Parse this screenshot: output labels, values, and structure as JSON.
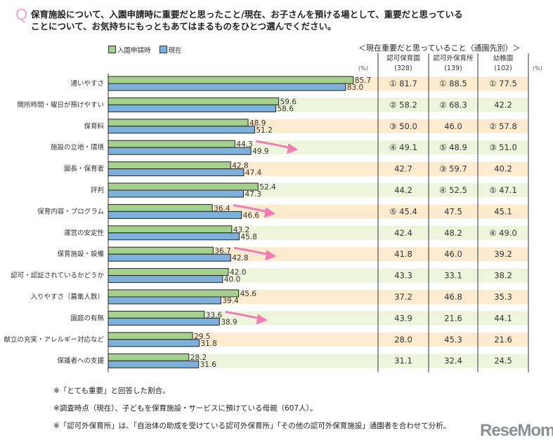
{
  "question_mark": "Q",
  "title_lines": [
    "保育施設について、入園申請時に重要だと思ったこと/現在、お子さんを預ける場として、重要だと思っている",
    "ことについて、お気持ちにもっともあてはまるものをひとつ選んでください。"
  ],
  "chart_data": {
    "type": "bar",
    "orientation": "horizontal",
    "unit": "(%)",
    "xlim": [
      0,
      100
    ],
    "categories": [
      "通いやすさ",
      "開所時間・曜日が預けやすい",
      "保育料",
      "施設の立地・環境",
      "園長・保育者",
      "評判",
      "保育内容・プログラム",
      "運営の安定性",
      "保育施設・設備",
      "認可・認証されているかどうか",
      "入りやすさ（募集人数）",
      "園庭の有無",
      "献立の充実・アレルギー対応など",
      "保護者への支援"
    ],
    "series": [
      {
        "name": "入園申請時",
        "color": "#a6d08e",
        "values": [
          85.7,
          59.6,
          48.9,
          44.3,
          42.8,
          52.4,
          36.4,
          43.2,
          36.7,
          42.0,
          45.6,
          33.6,
          29.5,
          28.2
        ]
      },
      {
        "name": "現在",
        "color": "#7fb0da",
        "values": [
          83.0,
          58.6,
          51.2,
          49.9,
          47.4,
          47.3,
          46.6,
          45.8,
          42.8,
          40.0,
          39.4,
          38.9,
          31.8,
          31.6
        ]
      }
    ],
    "increase_arrows": [
      "施設の立地・環境",
      "保育内容・プログラム",
      "保育施設・設備",
      "園庭の有無"
    ],
    "arrow_color": "#f27cb4",
    "band_colors": [
      "#fdebd0",
      "#eef5dc"
    ]
  },
  "table": {
    "title": "＜現在重要だと思っていること（通園先別）＞",
    "unit": "(%)",
    "columns": [
      {
        "name": "認可保育園",
        "n": "(328)"
      },
      {
        "name": "認可外保育所",
        "n": "(139)"
      },
      {
        "name": "幼稚園",
        "n": "(102)"
      }
    ],
    "rows": [
      [
        "① 81.7",
        "① 88.5",
        "① 77.5"
      ],
      [
        "② 58.2",
        "② 68.3",
        "42.2"
      ],
      [
        "③ 50.0",
        "46.0",
        "② 57.8"
      ],
      [
        "④ 49.1",
        "⑤ 48.9",
        "③ 51.0"
      ],
      [
        "42.7",
        "③ 59.7",
        "40.2"
      ],
      [
        "44.2",
        "④ 52.5",
        "⑤ 47.1"
      ],
      [
        "⑤ 45.4",
        "47.5",
        "45.1"
      ],
      [
        "42.4",
        "48.2",
        "④ 49.0"
      ],
      [
        "41.8",
        "46.0",
        "39.2"
      ],
      [
        "43.3",
        "33.1",
        "38.2"
      ],
      [
        "37.2",
        "46.8",
        "35.3"
      ],
      [
        "43.9",
        "21.6",
        "44.1"
      ],
      [
        "28.0",
        "45.3",
        "21.6"
      ],
      [
        "31.1",
        "32.4",
        "24.5"
      ]
    ]
  },
  "footnotes": [
    "※「とても重要」と回答した割合。",
    "※調査時点（現在）、子どもを保育施設・サービスに預けている母親（607人）。",
    "※「認可外保育所」は、「自治体の助成を受けている認可外保育所」「その他の認可外保育施設」通園者を合わせて分析。"
  ],
  "logo": "ReseMom"
}
